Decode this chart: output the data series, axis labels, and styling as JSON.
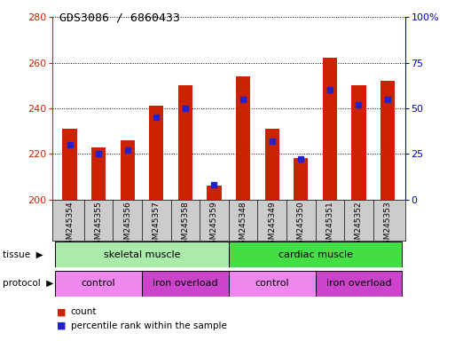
{
  "title": "GDS3086 / 6860433",
  "samples": [
    "GSM245354",
    "GSM245355",
    "GSM245356",
    "GSM245357",
    "GSM245358",
    "GSM245359",
    "GSM245348",
    "GSM245349",
    "GSM245350",
    "GSM245351",
    "GSM245352",
    "GSM245353"
  ],
  "count_values": [
    231,
    223,
    226,
    241,
    250,
    206,
    254,
    231,
    218,
    262,
    250,
    252
  ],
  "percentile_values": [
    30,
    25,
    27,
    45,
    50,
    8,
    55,
    32,
    22,
    60,
    52,
    55
  ],
  "count_base": 200,
  "count_color": "#cc2200",
  "percentile_color": "#2222cc",
  "ylim_left": [
    200,
    280
  ],
  "ylim_right": [
    0,
    100
  ],
  "yticks_left": [
    200,
    220,
    240,
    260,
    280
  ],
  "yticks_right": [
    0,
    25,
    50,
    75,
    100
  ],
  "ytick_labels_right": [
    "0",
    "25",
    "50",
    "75",
    "100%"
  ],
  "tissue_groups": [
    {
      "label": "skeletal muscle",
      "start": 0,
      "end": 5,
      "color": "#aaeaaa"
    },
    {
      "label": "cardiac muscle",
      "start": 6,
      "end": 11,
      "color": "#44dd44"
    }
  ],
  "protocol_groups": [
    {
      "label": "control",
      "start": 0,
      "end": 2,
      "color": "#ee88ee"
    },
    {
      "label": "iron overload",
      "start": 3,
      "end": 5,
      "color": "#cc44cc"
    },
    {
      "label": "control",
      "start": 6,
      "end": 8,
      "color": "#ee88ee"
    },
    {
      "label": "iron overload",
      "start": 9,
      "end": 11,
      "color": "#cc44cc"
    }
  ],
  "legend_count_label": "count",
  "legend_percentile_label": "percentile rank within the sample",
  "background_color": "#ffffff",
  "left_axis_color": "#cc2200",
  "right_axis_color": "#0000cc",
  "bar_width": 0.5,
  "xticklabel_bg": "#cccccc"
}
